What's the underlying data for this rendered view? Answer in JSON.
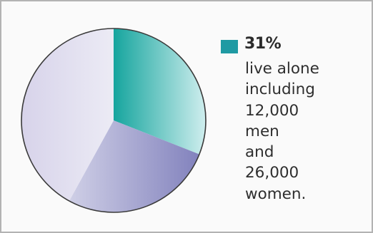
{
  "chart_data": {
    "type": "pie",
    "slices": [
      {
        "value": 31,
        "color": "#2aa6a6",
        "fill": "slice-teal"
      },
      {
        "value": 27,
        "color": "#8e8ec0",
        "fill": "slice-blue"
      },
      {
        "value": 42,
        "color": "#d6d1e8",
        "fill": "slice-lavender"
      }
    ],
    "legend": {
      "swatch_color": "#1f9aa3",
      "value": "31%",
      "lines": [
        "live alone",
        "including",
        "12,000",
        "men",
        "and",
        "26,000",
        "women."
      ]
    }
  }
}
